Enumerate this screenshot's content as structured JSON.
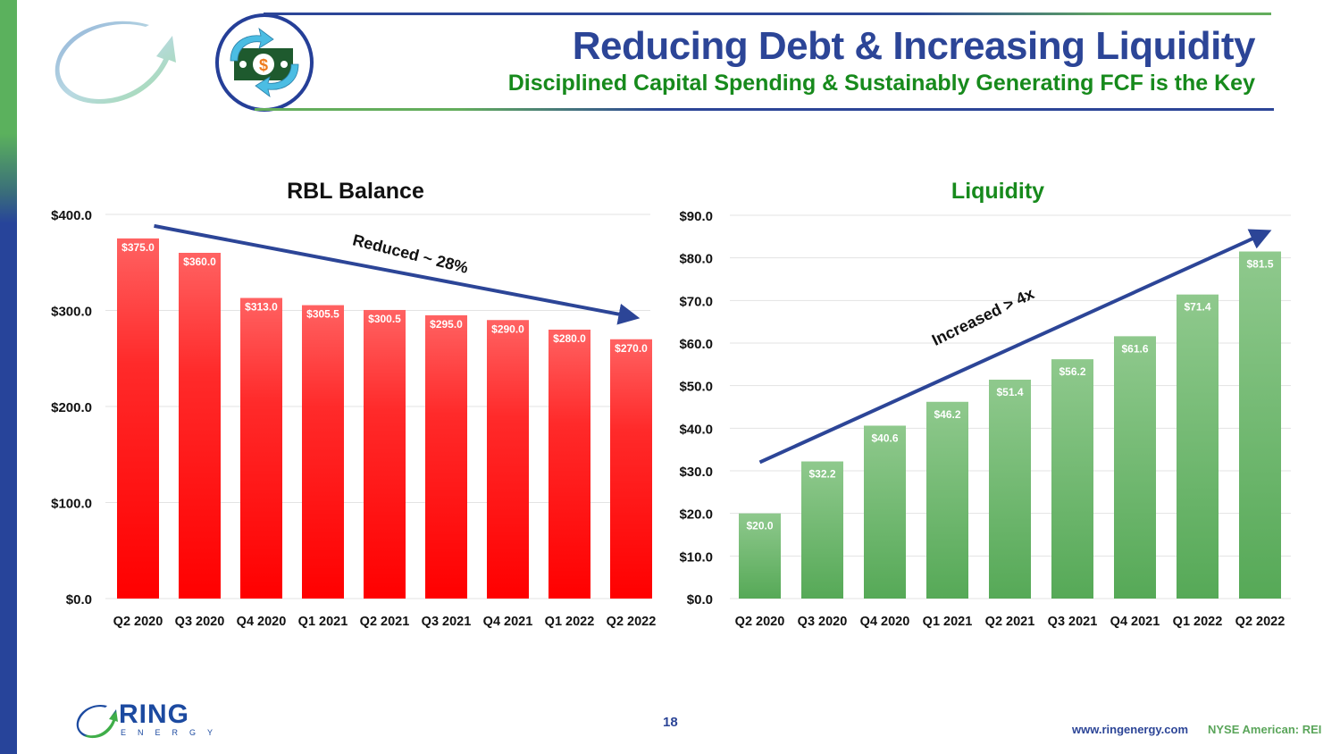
{
  "header": {
    "title": "Reducing Debt & Increasing Liquidity",
    "subtitle": "Disciplined Capital Spending & Sustainably Generating FCF is the Key",
    "icons": [
      "circular-arrow-logo-icon",
      "money-exchange-icon"
    ]
  },
  "colors": {
    "brand_blue": "#2c4597",
    "brand_green": "#178a1c",
    "rbl_bar_top": "#ff6060",
    "rbl_bar_bottom": "#ff0000",
    "liq_bar_top": "#8cc78a",
    "liq_bar_bottom": "#56a957",
    "arrow": "#2c4597"
  },
  "chart_data": [
    {
      "type": "bar",
      "title": "RBL Balance",
      "xlabel": "",
      "ylabel": "",
      "categories": [
        "Q2 2020",
        "Q3 2020",
        "Q4 2020",
        "Q1 2021",
        "Q2 2021",
        "Q3 2021",
        "Q4 2021",
        "Q1 2022",
        "Q2 2022"
      ],
      "values": [
        375.0,
        360.0,
        313.0,
        305.5,
        300.5,
        295.0,
        290.0,
        280.0,
        270.0
      ],
      "data_labels": [
        "$375.0",
        "$360.0",
        "$313.0",
        "$305.5",
        "$300.5",
        "$295.0",
        "$290.0",
        "$280.0",
        "$270.0"
      ],
      "ylim": [
        0,
        400
      ],
      "yticks": [
        0,
        100,
        200,
        300,
        400
      ],
      "ytick_labels": [
        "$0.0",
        "$100.0",
        "$200.0",
        "$300.0",
        "$400.0"
      ],
      "grid": true,
      "annotation": {
        "text": "Reduced ~ 28%",
        "direction": "down",
        "arrow_from": {
          "category": "Q2 2020",
          "value": 388
        },
        "arrow_to": {
          "category": "Q2 2022",
          "value": 294
        }
      }
    },
    {
      "type": "bar",
      "title": "Liquidity",
      "xlabel": "",
      "ylabel": "",
      "categories": [
        "Q2 2020",
        "Q3 2020",
        "Q4 2020",
        "Q1 2021",
        "Q2 2021",
        "Q3 2021",
        "Q4 2021",
        "Q1 2022",
        "Q2 2022"
      ],
      "values": [
        20.0,
        32.2,
        40.6,
        46.2,
        51.4,
        56.2,
        61.6,
        71.4,
        81.5
      ],
      "data_labels": [
        "$20.0",
        "$32.2",
        "$40.6",
        "$46.2",
        "$51.4",
        "$56.2",
        "$61.6",
        "$71.4",
        "$81.5"
      ],
      "ylim": [
        0,
        90
      ],
      "yticks": [
        0,
        10,
        20,
        30,
        40,
        50,
        60,
        70,
        80,
        90
      ],
      "ytick_labels": [
        "$0.0",
        "$10.0",
        "$20.0",
        "$30.0",
        "$40.0",
        "$50.0",
        "$60.0",
        "$70.0",
        "$80.0",
        "$90.0"
      ],
      "grid": true,
      "annotation": {
        "text": "Increased > 4x",
        "direction": "up",
        "arrow_from": {
          "category": "Q2 2020",
          "value": 32
        },
        "arrow_to": {
          "category": "Q2 2022",
          "value": 85.5
        }
      }
    }
  ],
  "footer": {
    "page_number": "18",
    "url": "www.ringenergy.com",
    "ticker": "NYSE American: REI",
    "logo_word": "RING",
    "logo_sub": "ENERGY"
  }
}
